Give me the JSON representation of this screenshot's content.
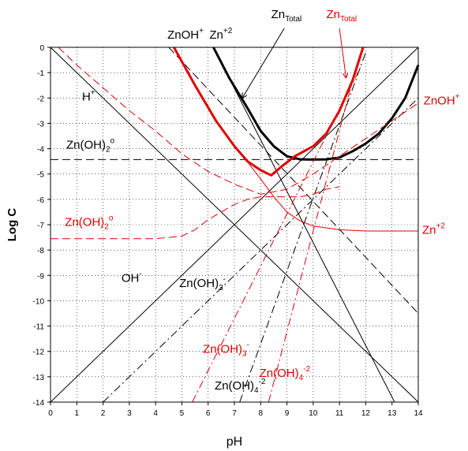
{
  "chart_data": {
    "type": "line",
    "xlabel": "pH",
    "ylabel": "Log C",
    "xlim": [
      0,
      14
    ],
    "ylim": [
      -14,
      0
    ],
    "x_ticks": [
      "0",
      "1",
      "2",
      "3",
      "4",
      "5",
      "6",
      "7",
      "8",
      "9",
      "10",
      "11",
      "12",
      "13",
      "14"
    ],
    "y_ticks": [
      "0",
      "-1",
      "-2",
      "-3",
      "-4",
      "-5",
      "-6",
      "-7",
      "-8",
      "-9",
      "-10",
      "-11",
      "-12",
      "-13",
      "-14"
    ],
    "grid": "dotted",
    "reference_line": {
      "y": -4.43,
      "style": "dashed",
      "color": "#000000"
    },
    "series": [
      {
        "name": "H+",
        "color": "#000000",
        "style": "solid",
        "width": 1,
        "points": [
          [
            0,
            0
          ],
          [
            14,
            -14
          ]
        ]
      },
      {
        "name": "OH-",
        "color": "#000000",
        "style": "solid",
        "width": 1,
        "points": [
          [
            0,
            -14
          ],
          [
            14,
            0
          ]
        ]
      },
      {
        "name": "Zn+2",
        "color": "#000000",
        "style": "solid",
        "width": 1,
        "points": [
          [
            6.2,
            0
          ],
          [
            13.1,
            -14
          ]
        ]
      },
      {
        "name": "ZnOH+",
        "color": "#000000",
        "style": "dashed",
        "width": 1,
        "points": [
          [
            4.5,
            0
          ],
          [
            14,
            -10.5
          ]
        ]
      },
      {
        "name": "Zn(OH)2o",
        "color": "#000000",
        "style": "dashed",
        "width": 1,
        "points": [
          [
            0,
            -4.43
          ],
          [
            14,
            -4.43
          ]
        ]
      },
      {
        "name": "Zn(OH)3-",
        "color": "#000000",
        "style": "dash-dot",
        "width": 1,
        "points": [
          [
            2,
            -14
          ],
          [
            14,
            -2
          ]
        ]
      },
      {
        "name": "Zn(OH)4-2",
        "color": "#000000",
        "style": "dash-dot",
        "width": 1,
        "points": [
          [
            7.2,
            -14
          ],
          [
            12,
            -0.2
          ]
        ]
      },
      {
        "name": "ZnTotal",
        "color": "#000000",
        "style": "solid",
        "width": 3,
        "points": [
          [
            6.2,
            0
          ],
          [
            6.8,
            -1.2
          ],
          [
            7.5,
            -2.4
          ],
          [
            8,
            -3.3
          ],
          [
            8.5,
            -3.9
          ],
          [
            9,
            -4.3
          ],
          [
            9.5,
            -4.42
          ],
          [
            10,
            -4.43
          ],
          [
            10.5,
            -4.42
          ],
          [
            11,
            -4.35
          ],
          [
            11.5,
            -4.1
          ],
          [
            12,
            -3.8
          ],
          [
            12.5,
            -3.4
          ],
          [
            13,
            -2.8
          ],
          [
            13.5,
            -2
          ],
          [
            14,
            -0.7
          ]
        ]
      },
      {
        "name": "ZnTotal",
        "color": "#e00000",
        "style": "solid",
        "width": 3,
        "points": [
          [
            4.7,
            0
          ],
          [
            5.5,
            -1.5
          ],
          [
            6.3,
            -2.9
          ],
          [
            7,
            -3.9
          ],
          [
            7.5,
            -4.5
          ],
          [
            8,
            -4.85
          ],
          [
            8.4,
            -5.05
          ],
          [
            8.8,
            -4.7
          ],
          [
            9.3,
            -4.3
          ],
          [
            10,
            -3.9
          ],
          [
            10.5,
            -3.4
          ],
          [
            11,
            -2.5
          ],
          [
            11.5,
            -1.3
          ],
          [
            11.9,
            0
          ]
        ]
      },
      {
        "name": "ZnOH+",
        "color": "#e00000",
        "style": "dashed",
        "width": 1,
        "points": [
          [
            0.3,
            0
          ],
          [
            1,
            -0.7
          ],
          [
            2,
            -1.6
          ],
          [
            3,
            -2.5
          ],
          [
            4,
            -3.3
          ],
          [
            5,
            -4.2
          ],
          [
            6,
            -4.9
          ],
          [
            7,
            -5.4
          ],
          [
            8,
            -5.8
          ],
          [
            9,
            -5.6
          ],
          [
            10,
            -5
          ],
          [
            11,
            -4.3
          ],
          [
            12,
            -3.6
          ],
          [
            13,
            -2.9
          ],
          [
            14,
            -2.2
          ]
        ]
      },
      {
        "name": "Zn(OH)2o",
        "color": "#e00000",
        "style": "dashed",
        "width": 1,
        "points": [
          [
            0,
            -7.55
          ],
          [
            4,
            -7.55
          ],
          [
            5,
            -7.45
          ],
          [
            5.5,
            -7.2
          ],
          [
            6,
            -6.8
          ],
          [
            7,
            -6.2
          ],
          [
            7.5,
            -6.0
          ],
          [
            8,
            -5.9
          ],
          [
            9,
            -5.9
          ],
          [
            9.5,
            -5.9
          ],
          [
            10,
            -5.8
          ],
          [
            10.5,
            -5.6
          ],
          [
            11,
            -5.5
          ]
        ]
      },
      {
        "name": "Zn+2",
        "color": "#e00000",
        "style": "solid",
        "width": 1,
        "points": [
          [
            7,
            -3.85
          ],
          [
            8,
            -5.2
          ],
          [
            8.5,
            -5.9
          ],
          [
            9,
            -6.5
          ],
          [
            9.5,
            -6.85
          ],
          [
            10,
            -7.05
          ],
          [
            11,
            -7.2
          ],
          [
            12,
            -7.25
          ],
          [
            14,
            -7.25
          ]
        ]
      },
      {
        "name": "Zn(OH)3-",
        "color": "#e00000",
        "style": "dash-dot",
        "width": 1,
        "points": [
          [
            5.4,
            -14
          ],
          [
            11.8,
            -0.8
          ]
        ]
      },
      {
        "name": "Zn(OH)4-2",
        "color": "#e00000",
        "style": "dash-dot",
        "width": 1,
        "points": [
          [
            8.3,
            -14
          ],
          [
            11.6,
            -0.9
          ]
        ]
      }
    ],
    "annotations": [
      {
        "text": "ZnOH",
        "sup": "+",
        "color": "#000000",
        "x": 4.45,
        "y": 0.35
      },
      {
        "text": "Zn",
        "sup": "+2",
        "color": "#000000",
        "x": 6.05,
        "y": 0.35
      },
      {
        "text": "Zn",
        "sub": "Total",
        "color": "#000000",
        "x": 8.4,
        "y": 1.15
      },
      {
        "text": "Zn",
        "sub": "Total",
        "color": "#e00000",
        "x": 10.5,
        "y": 1.15
      },
      {
        "text": "H",
        "sup": "+",
        "color": "#000000",
        "x": 1.2,
        "y": -2.1
      },
      {
        "text": "ZnOH",
        "sup": "+",
        "color": "#e00000",
        "x": 14.2,
        "y": -2.25
      },
      {
        "text": "Zn(OH)",
        "sub": "2",
        "sup": "o",
        "color": "#000000",
        "x": 0.6,
        "y": -4.0
      },
      {
        "text": "Zn(OH)",
        "sub": "2",
        "sup": "o",
        "color": "#e00000",
        "x": 0.55,
        "y": -7.05
      },
      {
        "text": "Zn",
        "sup": "+2",
        "color": "#e00000",
        "x": 14.15,
        "y": -7.35
      },
      {
        "text": "OH",
        "sup": "-",
        "color": "#000000",
        "x": 2.7,
        "y": -9.25
      },
      {
        "text": "Zn(OH)",
        "sub": "3",
        "sup": "-",
        "color": "#000000",
        "x": 4.9,
        "y": -9.45
      },
      {
        "text": "Zn(OH)",
        "sub": "3",
        "sup": "-",
        "color": "#e00000",
        "x": 5.8,
        "y": -12.05
      },
      {
        "text": "Zn(OH)",
        "sub": "4",
        "sup": "-2",
        "color": "#e00000",
        "x": 7.95,
        "y": -13.0
      },
      {
        "text": "Zn(OH)",
        "sub": "4",
        "sup": "-2",
        "color": "#000000",
        "x": 6.25,
        "y": -13.5
      }
    ],
    "arrows": [
      {
        "color": "#000000",
        "from": [
          8.9,
          0.75
        ],
        "to": [
          7.3,
          -2.0
        ]
      },
      {
        "color": "#e00000",
        "from": [
          11.0,
          0.75
        ],
        "to": [
          11.25,
          -1.2
        ]
      }
    ]
  }
}
